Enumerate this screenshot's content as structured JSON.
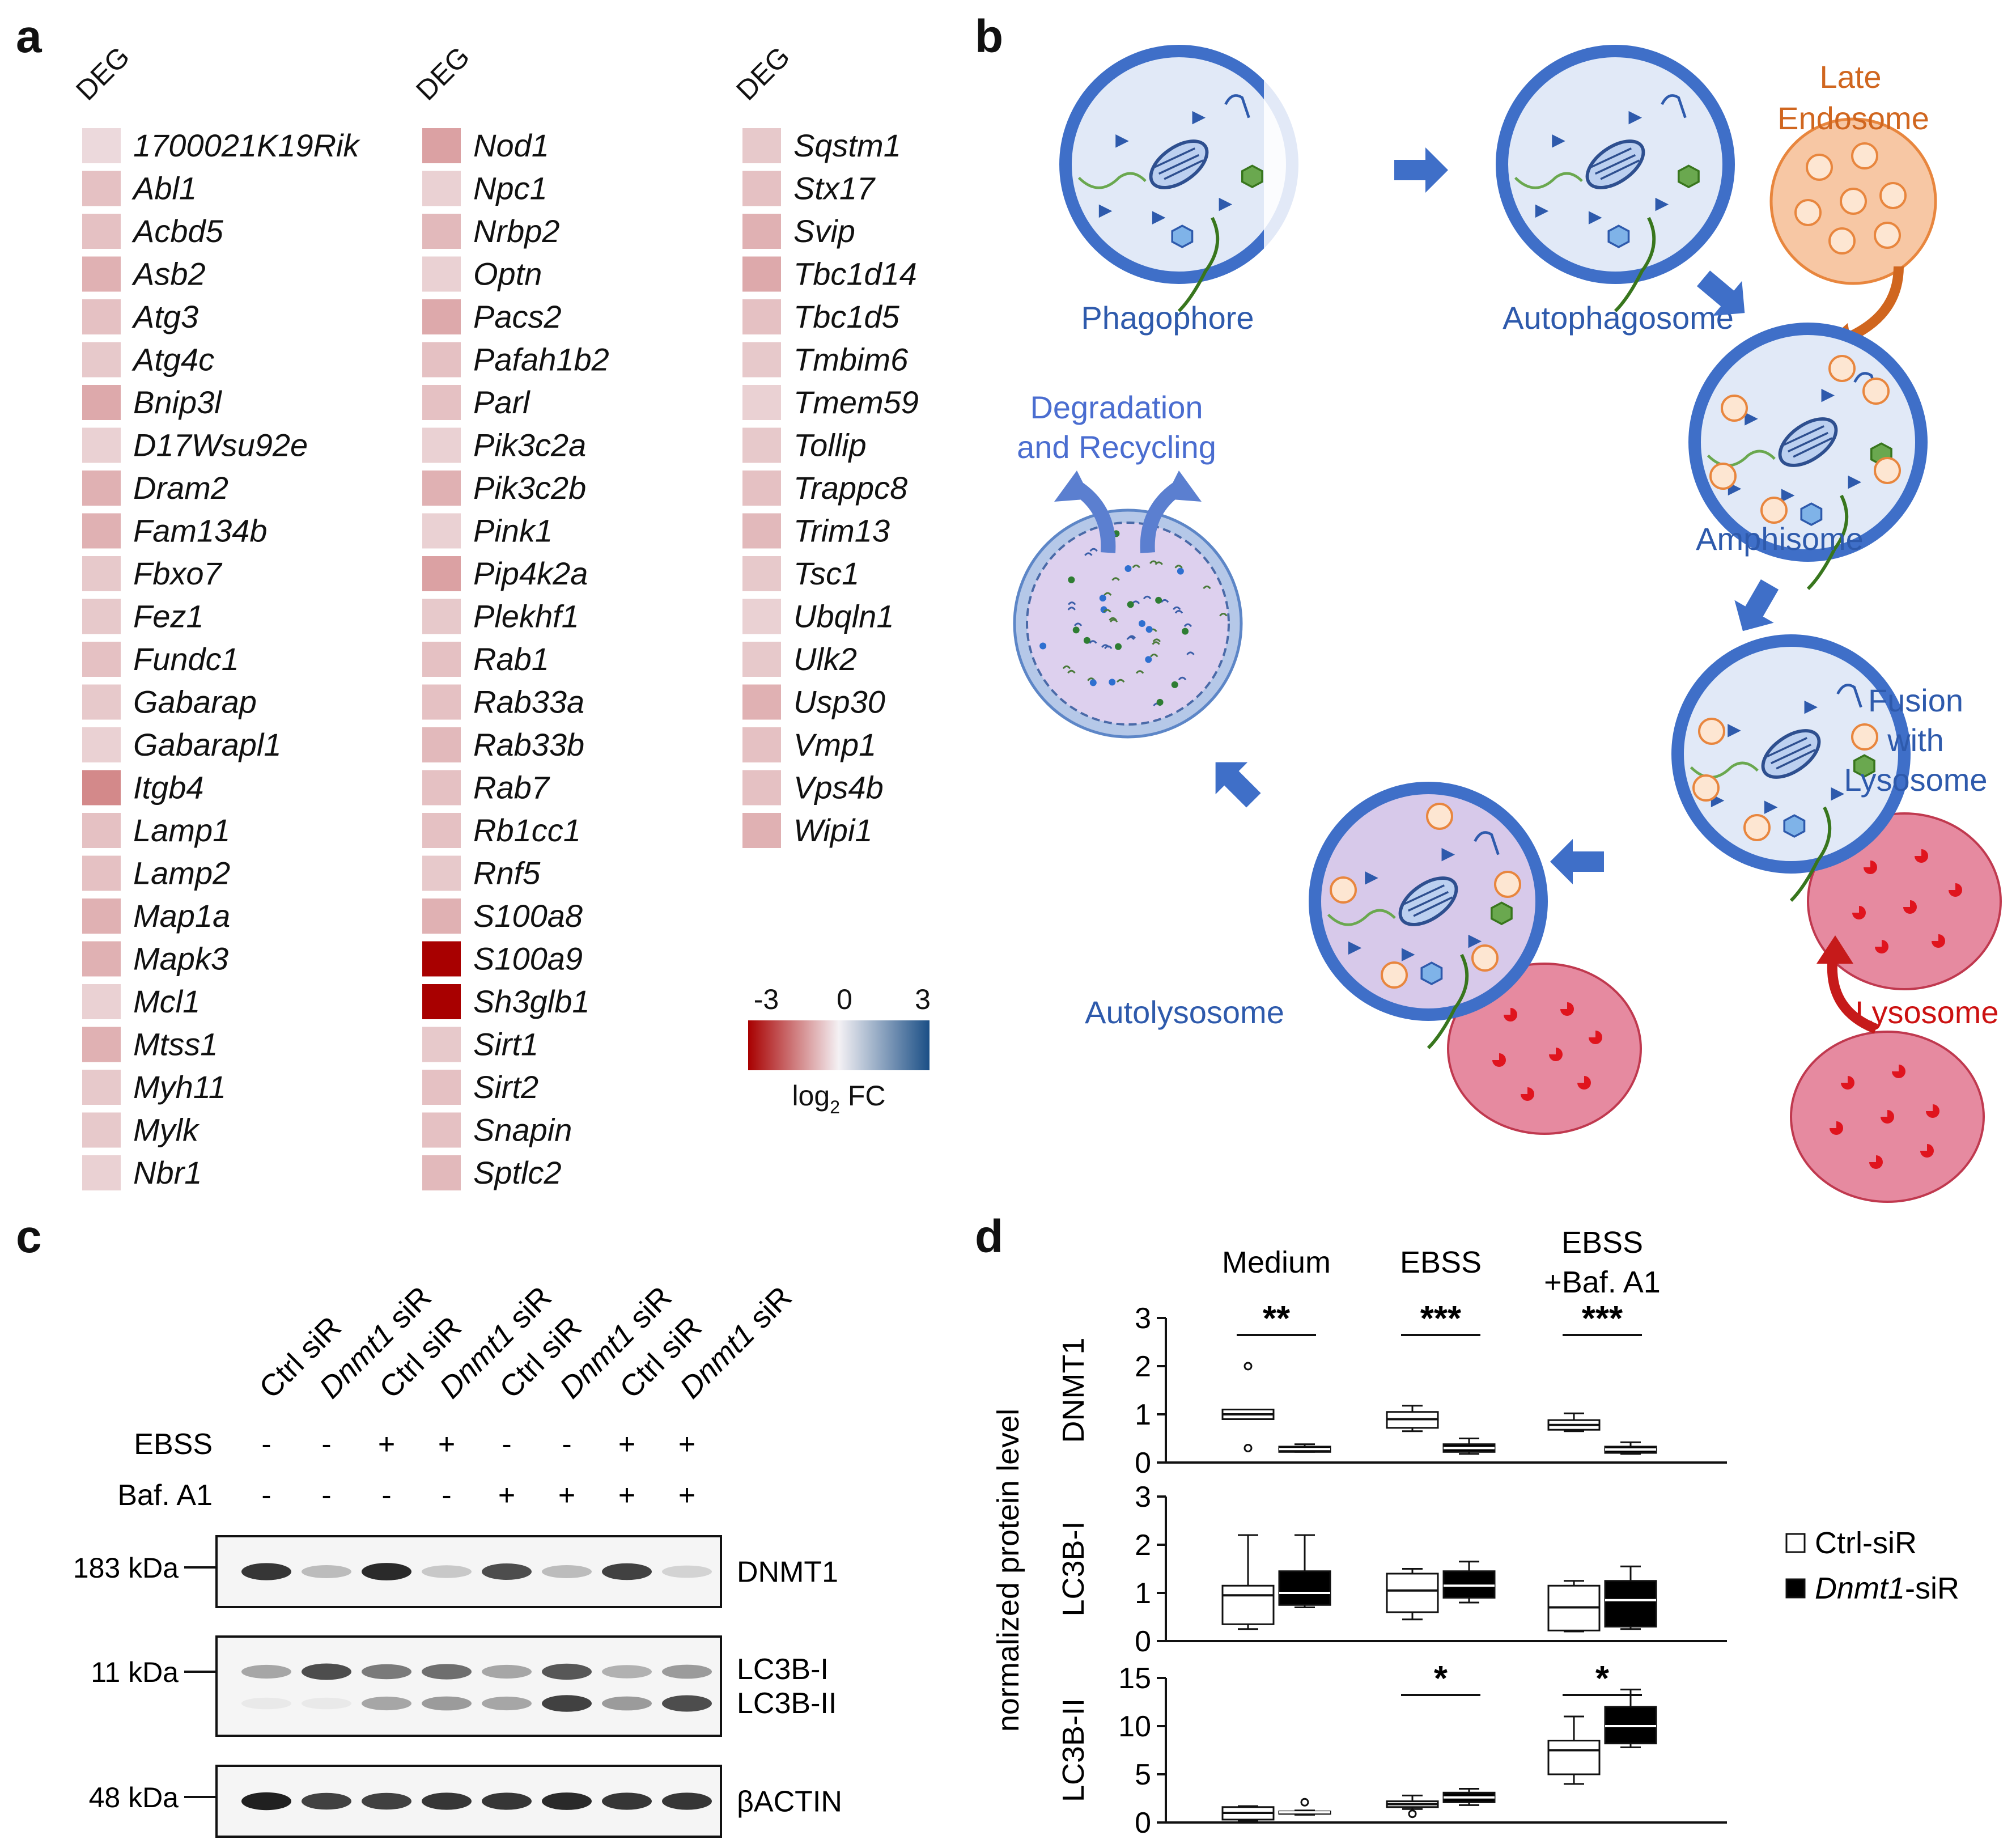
{
  "panels": {
    "a": "a",
    "b": "b",
    "c": "c",
    "d": "d"
  },
  "heatmap": {
    "column_header": "DEG",
    "columns": [
      {
        "genes": [
          {
            "name": "1700021K19Rik",
            "log2fc": -0.3
          },
          {
            "name": "Abl1",
            "log2fc": -0.6
          },
          {
            "name": "Acbd5",
            "log2fc": -0.6
          },
          {
            "name": "Asb2",
            "log2fc": -0.8
          },
          {
            "name": "Atg3",
            "log2fc": -0.6
          },
          {
            "name": "Atg4c",
            "log2fc": -0.5
          },
          {
            "name": "Bnip3l",
            "log2fc": -0.9
          },
          {
            "name": "D17Wsu92e",
            "log2fc": -0.4
          },
          {
            "name": "Dram2",
            "log2fc": -0.8
          },
          {
            "name": "Fam134b",
            "log2fc": -0.8
          },
          {
            "name": "Fbxo7",
            "log2fc": -0.5
          },
          {
            "name": "Fez1",
            "log2fc": -0.5
          },
          {
            "name": "Fundc1",
            "log2fc": -0.6
          },
          {
            "name": "Gabarap",
            "log2fc": -0.5
          },
          {
            "name": "Gabarapl1",
            "log2fc": -0.4
          },
          {
            "name": "Itgb4",
            "log2fc": -1.3
          },
          {
            "name": "Lamp1",
            "log2fc": -0.6
          },
          {
            "name": "Lamp2",
            "log2fc": -0.6
          },
          {
            "name": "Map1a",
            "log2fc": -0.8
          },
          {
            "name": "Mapk3",
            "log2fc": -0.8
          },
          {
            "name": "Mcl1",
            "log2fc": -0.4
          },
          {
            "name": "Mtss1",
            "log2fc": -0.8
          },
          {
            "name": "Myh11",
            "log2fc": -0.5
          },
          {
            "name": "Mylk",
            "log2fc": -0.5
          },
          {
            "name": "Nbr1",
            "log2fc": -0.4
          }
        ]
      },
      {
        "genes": [
          {
            "name": "Nod1",
            "log2fc": -1.0
          },
          {
            "name": "Npc1",
            "log2fc": -0.4
          },
          {
            "name": "Nrbp2",
            "log2fc": -0.7
          },
          {
            "name": "Optn",
            "log2fc": -0.4
          },
          {
            "name": "Pacs2",
            "log2fc": -0.9
          },
          {
            "name": "Pafah1b2",
            "log2fc": -0.6
          },
          {
            "name": "Parl",
            "log2fc": -0.6
          },
          {
            "name": "Pik3c2a",
            "log2fc": -0.4
          },
          {
            "name": "Pik3c2b",
            "log2fc": -0.8
          },
          {
            "name": "Pink1",
            "log2fc": -0.4
          },
          {
            "name": "Pip4k2a",
            "log2fc": -1.0
          },
          {
            "name": "Plekhf1",
            "log2fc": -0.5
          },
          {
            "name": "Rab1",
            "log2fc": -0.6
          },
          {
            "name": "Rab33a",
            "log2fc": -0.6
          },
          {
            "name": "Rab33b",
            "log2fc": -0.7
          },
          {
            "name": "Rab7",
            "log2fc": -0.6
          },
          {
            "name": "Rb1cc1",
            "log2fc": -0.6
          },
          {
            "name": "Rnf5",
            "log2fc": -0.5
          },
          {
            "name": "S100a8",
            "log2fc": -0.8
          },
          {
            "name": "S100a9",
            "log2fc": -3.0
          },
          {
            "name": "Sh3glb1",
            "log2fc": -3.0
          },
          {
            "name": "Sirt1",
            "log2fc": -0.5
          },
          {
            "name": "Sirt2",
            "log2fc": -0.6
          },
          {
            "name": "Snapin",
            "log2fc": -0.6
          },
          {
            "name": "Sptlc2",
            "log2fc": -0.7
          }
        ]
      },
      {
        "genes": [
          {
            "name": "Sqstm1",
            "log2fc": -0.5
          },
          {
            "name": "Stx17",
            "log2fc": -0.6
          },
          {
            "name": "Svip",
            "log2fc": -0.8
          },
          {
            "name": "Tbc1d14",
            "log2fc": -0.9
          },
          {
            "name": "Tbc1d5",
            "log2fc": -0.6
          },
          {
            "name": "Tmbim6",
            "log2fc": -0.5
          },
          {
            "name": "Tmem59",
            "log2fc": -0.4
          },
          {
            "name": "Tollip",
            "log2fc": -0.5
          },
          {
            "name": "Trappc8",
            "log2fc": -0.6
          },
          {
            "name": "Trim13",
            "log2fc": -0.7
          },
          {
            "name": "Tsc1",
            "log2fc": -0.5
          },
          {
            "name": "Ubqln1",
            "log2fc": -0.4
          },
          {
            "name": "Ulk2",
            "log2fc": -0.5
          },
          {
            "name": "Usp30",
            "log2fc": -0.8
          },
          {
            "name": "Vmp1",
            "log2fc": -0.6
          },
          {
            "name": "Vps4b",
            "log2fc": -0.6
          },
          {
            "name": "Wipi1",
            "log2fc": -0.8
          }
        ]
      }
    ],
    "legend": {
      "min_label": "-3",
      "mid_label": "0",
      "max_label": "3",
      "title_main": "log",
      "title_sub": "2",
      "title_end": " FC",
      "color_low": "#a80000",
      "color_mid": "#f4f1f4",
      "color_high": "#1b4f86"
    }
  },
  "diagram": {
    "labels": {
      "phagophore": "Phagophore",
      "autophagosome": "Autophagosome",
      "late_endosome_1": "Late",
      "late_endosome_2": "Endosome",
      "amphisome": "Amphisome",
      "fusion_1": "Fusion",
      "fusion_2": "with",
      "fusion_3": "Lysosome",
      "lysosome": "Lysosome",
      "autolysosome": "Autolysosome",
      "degradation_1": "Degradation",
      "degradation_2": "and Recycling"
    },
    "colors": {
      "label_blue": "#2e5aac",
      "label_orange": "#d0661f",
      "label_red": "#cc1111",
      "membrane": "#3f6fc8",
      "lumen": "#e1e9f7",
      "endosome": "#f7c7a4",
      "lysosome": "#e68aa0",
      "autolysosome": "#d7c9ea"
    }
  },
  "western_blot": {
    "lane_labels": [
      "Ctrl siR",
      "Dnmt1 siR",
      "Ctrl siR",
      "Dnmt1 siR",
      "Ctrl siR",
      "Dnmt1 siR",
      "Ctrl siR",
      "Dnmt1 siR"
    ],
    "lane_italic": [
      false,
      true,
      false,
      true,
      false,
      true,
      false,
      true
    ],
    "ctrl_text": "Ctrl",
    "dnmt_text": "Dnmt1",
    "sir_text": " siR",
    "treatments": [
      {
        "name": "EBSS",
        "values": [
          "-",
          "-",
          "+",
          "+",
          "-",
          "-",
          "+",
          "+"
        ]
      },
      {
        "name": "Baf. A1",
        "values": [
          "-",
          "-",
          "-",
          "-",
          "+",
          "+",
          "+",
          "+"
        ]
      }
    ],
    "blots": [
      {
        "marker": "183 kDa",
        "bands": [
          "DNMT1"
        ],
        "intensity": [
          0.85,
          0.25,
          0.9,
          0.2,
          0.75,
          0.25,
          0.8,
          0.15
        ]
      },
      {
        "marker": "11 kDa",
        "bands": [
          "LC3B-I",
          "LC3B-II"
        ],
        "intensity_upper": [
          0.35,
          0.75,
          0.55,
          0.6,
          0.35,
          0.7,
          0.3,
          0.4
        ],
        "intensity_lower": [
          0.05,
          0.05,
          0.35,
          0.4,
          0.35,
          0.8,
          0.4,
          0.75
        ]
      },
      {
        "marker": "48 kDa",
        "bands": [
          "βACTIN"
        ],
        "intensity": [
          0.95,
          0.8,
          0.8,
          0.85,
          0.85,
          0.9,
          0.85,
          0.85
        ]
      }
    ]
  },
  "chart_data": {
    "type": "boxplot",
    "ylabel": "normalized protein level",
    "groups": [
      "Medium",
      "EBSS",
      "EBSS +Baf. A1"
    ],
    "group_label_lines": [
      [
        "Medium"
      ],
      [
        "EBSS"
      ],
      [
        "EBSS",
        "+Baf. A1"
      ]
    ],
    "legend": [
      {
        "name": "Ctrl-siR",
        "italic_part": "",
        "rest": "Ctrl-siR",
        "fill": "#ffffff"
      },
      {
        "name": "Dnmt1-siR",
        "italic_part": "Dnmt1",
        "rest": "-siR",
        "fill": "#000000"
      }
    ],
    "panels": [
      {
        "protein": "DNMT1",
        "ylim": [
          0,
          3
        ],
        "yticks": [
          0,
          1,
          2,
          3
        ],
        "boxes": [
          {
            "group": "Medium",
            "series": "Ctrl-siR",
            "whisker_low": 0.9,
            "q1": 0.9,
            "median": 1.0,
            "q3": 1.1,
            "whisker_high": 1.1,
            "outliers": [
              2.0,
              0.3
            ]
          },
          {
            "group": "Medium",
            "series": "Dnmt1-siR",
            "whisker_low": 0.22,
            "q1": 0.22,
            "median": 0.28,
            "q3": 0.33,
            "whisker_high": 0.38,
            "outliers": []
          },
          {
            "group": "EBSS",
            "series": "Ctrl-siR",
            "whisker_low": 0.65,
            "q1": 0.72,
            "median": 0.9,
            "q3": 1.05,
            "whisker_high": 1.18,
            "outliers": []
          },
          {
            "group": "EBSS",
            "series": "Dnmt1-siR",
            "whisker_low": 0.18,
            "q1": 0.22,
            "median": 0.3,
            "q3": 0.38,
            "whisker_high": 0.5,
            "outliers": []
          },
          {
            "group": "EBSS +Baf. A1",
            "series": "Ctrl-siR",
            "whisker_low": 0.65,
            "q1": 0.68,
            "median": 0.78,
            "q3": 0.88,
            "whisker_high": 1.02,
            "outliers": []
          },
          {
            "group": "EBSS +Baf. A1",
            "series": "Dnmt1-siR",
            "whisker_low": 0.18,
            "q1": 0.2,
            "median": 0.27,
            "q3": 0.33,
            "whisker_high": 0.42,
            "outliers": []
          }
        ],
        "significance": [
          {
            "group": "Medium",
            "label": "**"
          },
          {
            "group": "EBSS",
            "label": "***"
          },
          {
            "group": "EBSS +Baf. A1",
            "label": "***"
          }
        ]
      },
      {
        "protein": "LC3B-I",
        "ylim": [
          0,
          3
        ],
        "yticks": [
          0,
          1,
          2,
          3
        ],
        "boxes": [
          {
            "group": "Medium",
            "series": "Ctrl-siR",
            "whisker_low": 0.25,
            "q1": 0.35,
            "median": 0.95,
            "q3": 1.15,
            "whisker_high": 2.2,
            "outliers": []
          },
          {
            "group": "Medium",
            "series": "Dnmt1-siR",
            "whisker_low": 0.7,
            "q1": 0.75,
            "median": 1.0,
            "q3": 1.45,
            "whisker_high": 2.2,
            "outliers": []
          },
          {
            "group": "EBSS",
            "series": "Ctrl-siR",
            "whisker_low": 0.45,
            "q1": 0.6,
            "median": 1.05,
            "q3": 1.4,
            "whisker_high": 1.5,
            "outliers": []
          },
          {
            "group": "EBSS",
            "series": "Dnmt1-siR",
            "whisker_low": 0.8,
            "q1": 0.9,
            "median": 1.15,
            "q3": 1.45,
            "whisker_high": 1.65,
            "outliers": []
          },
          {
            "group": "EBSS +Baf. A1",
            "series": "Ctrl-siR",
            "whisker_low": 0.2,
            "q1": 0.22,
            "median": 0.7,
            "q3": 1.15,
            "whisker_high": 1.25,
            "outliers": []
          },
          {
            "group": "EBSS +Baf. A1",
            "series": "Dnmt1-siR",
            "whisker_low": 0.25,
            "q1": 0.3,
            "median": 0.85,
            "q3": 1.25,
            "whisker_high": 1.55,
            "outliers": []
          }
        ],
        "significance": []
      },
      {
        "protein": "LC3B-II",
        "ylim": [
          0,
          15
        ],
        "yticks": [
          0,
          5,
          10,
          15
        ],
        "boxes": [
          {
            "group": "Medium",
            "series": "Ctrl-siR",
            "whisker_low": 0.2,
            "q1": 0.3,
            "median": 1.0,
            "q3": 1.6,
            "whisker_high": 1.7,
            "outliers": []
          },
          {
            "group": "Medium",
            "series": "Dnmt1-siR",
            "whisker_low": 0.8,
            "q1": 0.9,
            "median": 1.05,
            "q3": 1.15,
            "whisker_high": 1.25,
            "outliers": [
              2.1
            ]
          },
          {
            "group": "EBSS",
            "series": "Ctrl-siR",
            "whisker_low": 1.4,
            "q1": 1.6,
            "median": 1.9,
            "q3": 2.2,
            "whisker_high": 2.8,
            "outliers": [
              0.9
            ]
          },
          {
            "group": "EBSS",
            "series": "Dnmt1-siR",
            "whisker_low": 1.8,
            "q1": 2.1,
            "median": 2.6,
            "q3": 3.1,
            "whisker_high": 3.5,
            "outliers": []
          },
          {
            "group": "EBSS +Baf. A1",
            "series": "Ctrl-siR",
            "whisker_low": 4.0,
            "q1": 5.0,
            "median": 7.5,
            "q3": 8.5,
            "whisker_high": 11.0,
            "outliers": []
          },
          {
            "group": "EBSS +Baf. A1",
            "series": "Dnmt1-siR",
            "whisker_low": 7.8,
            "q1": 8.2,
            "median": 10.0,
            "q3": 12.0,
            "whisker_high": 13.8,
            "outliers": []
          }
        ],
        "significance": [
          {
            "group": "EBSS",
            "label": "*"
          },
          {
            "group": "EBSS +Baf. A1",
            "label": "*"
          }
        ]
      }
    ]
  }
}
